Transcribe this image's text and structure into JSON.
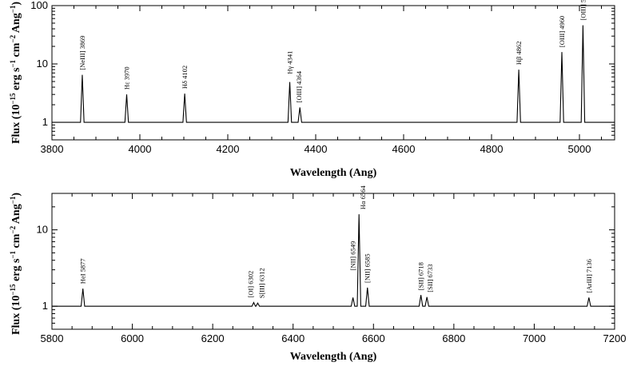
{
  "chart_data": [
    {
      "type": "line",
      "xlabel": "Wavelength (Ang)",
      "ylabel_prefix": "Flux (10",
      "ylabel_exp1": "−15",
      "ylabel_mid": " erg s",
      "ylabel_exp2": "−1",
      "ylabel_mid2": " cm",
      "ylabel_exp3": "−2",
      "ylabel_mid3": " Ang",
      "ylabel_exp4": "−1",
      "ylabel_suffix": ")",
      "xlim": [
        3800,
        5080
      ],
      "ylim": [
        0.5,
        100
      ],
      "yscale": "log",
      "continuum": 1,
      "xticks": [
        3800,
        4000,
        4200,
        4400,
        4600,
        4800,
        5000
      ],
      "xtick_labels": [
        "3800",
        "4000",
        "4200",
        "4400",
        "4600",
        "4800",
        "5000"
      ],
      "yticks": [
        1,
        10,
        100
      ],
      "ytick_labels": [
        "1",
        "10",
        "100"
      ],
      "lines": [
        {
          "label": "[NeIII] 3869",
          "x": 3869,
          "peak": 6.5
        },
        {
          "label": "Hε 3970",
          "x": 3970,
          "peak": 3.0
        },
        {
          "label": "Hδ 4102",
          "x": 4102,
          "peak": 3.1
        },
        {
          "label": "Hγ 4341",
          "x": 4341,
          "peak": 4.9
        },
        {
          "label": "[OIII] 4364",
          "x": 4364,
          "peak": 1.8
        },
        {
          "label": "Hβ 4862",
          "x": 4862,
          "peak": 8.0
        },
        {
          "label": "[OIII] 4960",
          "x": 4960,
          "peak": 16.0
        },
        {
          "label": "[OIII] 5008",
          "x": 5008,
          "peak": 46.0
        }
      ]
    },
    {
      "type": "line",
      "xlabel": "Wavelength (Ang)",
      "ylabel_prefix": "Flux (10",
      "ylabel_exp1": "−15",
      "ylabel_mid": " erg s",
      "ylabel_exp2": "−1",
      "ylabel_mid2": " cm",
      "ylabel_exp3": "−2",
      "ylabel_mid3": " Ang",
      "ylabel_exp4": "−1",
      "ylabel_suffix": ")",
      "xlim": [
        5800,
        7200
      ],
      "ylim": [
        0.5,
        30
      ],
      "yscale": "log",
      "continuum": 1,
      "xticks": [
        5800,
        6000,
        6200,
        6400,
        6600,
        6800,
        7000,
        7200
      ],
      "xtick_labels": [
        "5800",
        "6000",
        "6200",
        "6400",
        "6600",
        "6800",
        "7000",
        "7200"
      ],
      "yticks": [
        1,
        10
      ],
      "ytick_labels": [
        "1",
        "10"
      ],
      "lines": [
        {
          "label": "HeI 5877",
          "x": 5877,
          "peak": 1.7
        },
        {
          "label": "[OI] 6302",
          "x": 6302,
          "peak": 1.12
        },
        {
          "label": "S[III] 6312",
          "x": 6312,
          "peak": 1.1
        },
        {
          "label": "[NII] 6549",
          "x": 6549,
          "peak": 1.3
        },
        {
          "label": "Hα 6564",
          "x": 6564,
          "peak": 16.0
        },
        {
          "label": "[NII] 6585",
          "x": 6585,
          "peak": 1.75
        },
        {
          "label": "[SII] 6718",
          "x": 6718,
          "peak": 1.4
        },
        {
          "label": "[SII] 6733",
          "x": 6733,
          "peak": 1.32
        },
        {
          "label": "[ArIII] 7136",
          "x": 7136,
          "peak": 1.3
        }
      ]
    }
  ]
}
